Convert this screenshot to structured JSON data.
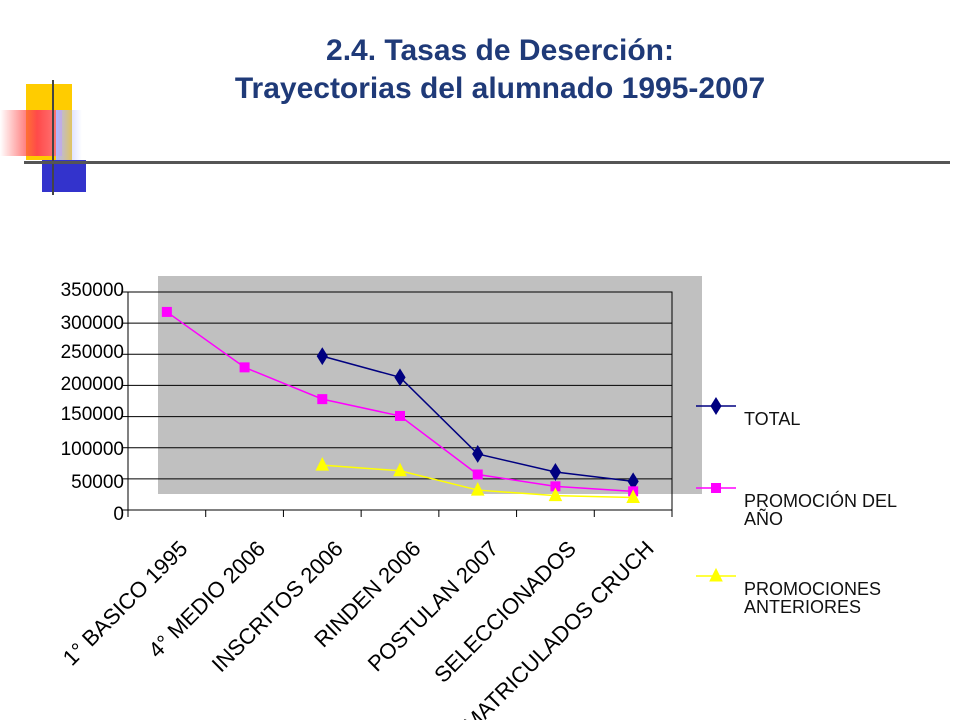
{
  "header": {
    "title_line1": "2.4. Tasas de Deserción:",
    "title_line2": "Trayectorias del alumnado 1995-2007"
  },
  "colors": {
    "title": "#1f3a78",
    "plot_bg": "#c0c0c0",
    "total": "#000080",
    "promocion": "#ff00ff",
    "anteriores": "#ffff00"
  },
  "chart_data": {
    "type": "line",
    "title": "",
    "xlabel": "",
    "ylabel": "",
    "ylim": [
      0,
      350000
    ],
    "grid": true,
    "legend_position": "right",
    "categories": [
      "1° BASICO 1995",
      "4° MEDIO 2006",
      "INSCRITOS 2006",
      "RINDEN 2006",
      "POSTULAN 2007",
      "SELECCIONADOS",
      "MATRICULADOS CRUCH"
    ],
    "y_ticks": [
      "0",
      "50000",
      "100000",
      "150000",
      "200000",
      "250000",
      "300000",
      "350000"
    ],
    "series": [
      {
        "name": "TOTAL",
        "marker": "diamond",
        "color": "#000080",
        "values": [
          null,
          null,
          247000,
          213000,
          90000,
          61000,
          46000
        ]
      },
      {
        "name": "PROMOCIÓN DEL AÑO",
        "marker": "square",
        "color": "#ff00ff",
        "values": [
          318000,
          229000,
          178000,
          151000,
          57000,
          38000,
          30000
        ]
      },
      {
        "name": "PROMOCIONES ANTERIORES",
        "marker": "triangle",
        "color": "#ffff00",
        "values": [
          null,
          null,
          72000,
          63000,
          32000,
          23000,
          20000
        ]
      }
    ],
    "legend": [
      {
        "line1": "TOTAL",
        "line2": ""
      },
      {
        "line1": "PROMOCIÓN DEL",
        "line2": "AÑO"
      },
      {
        "line1": "PROMOCIONES",
        "line2": "ANTERIORES"
      }
    ]
  }
}
